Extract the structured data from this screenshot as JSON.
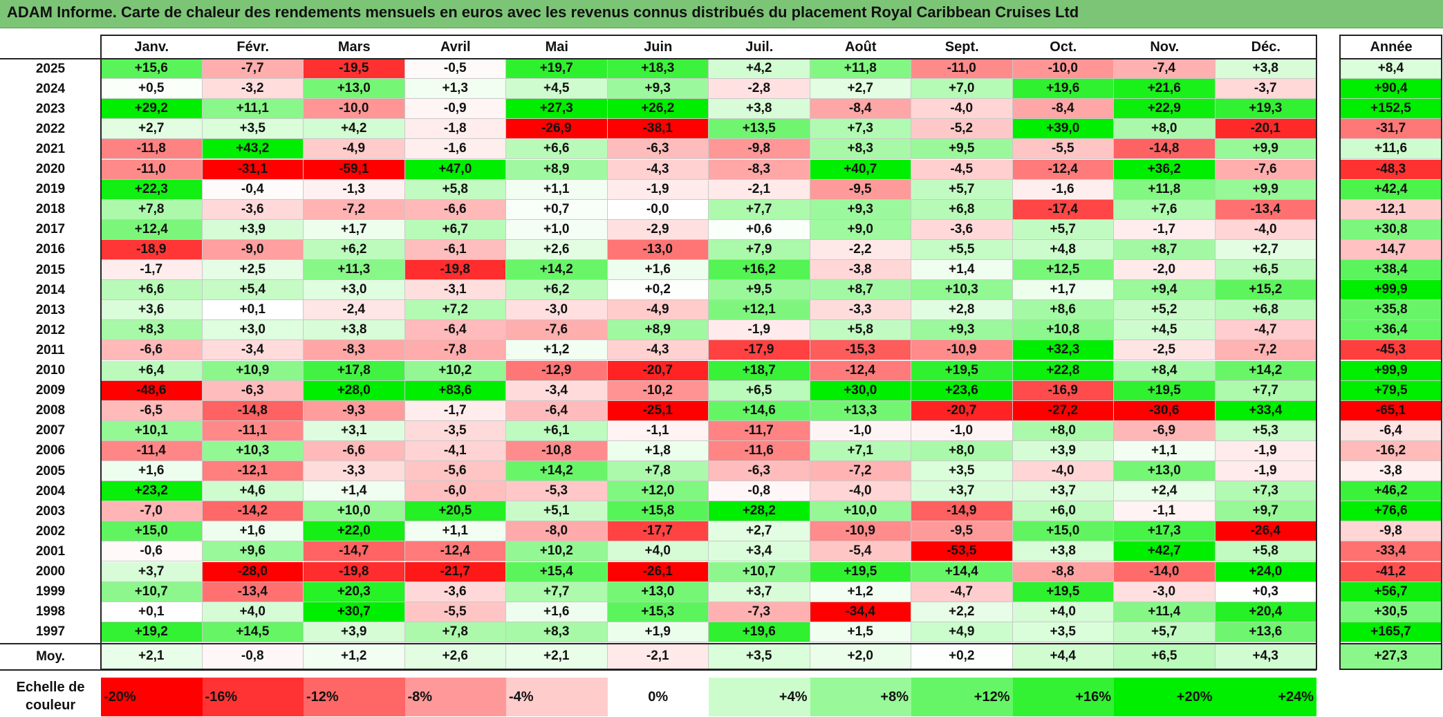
{
  "title": "ADAM Informe. Carte de chaleur des rendements mensuels en euros avec les revenus connus distribués du placement Royal Caribbean Cruises Ltd",
  "chart_data": {
    "type": "heatmap",
    "title": "ADAM Informe. Carte de chaleur des rendements mensuels en euros avec les revenus connus distribués du placement Royal Caribbean Cruises Ltd",
    "columns": [
      "Janv.",
      "Févr.",
      "Mars",
      "Avril",
      "Mai",
      "Juin",
      "Juil.",
      "Août",
      "Sept.",
      "Oct.",
      "Nov.",
      "Déc."
    ],
    "year_column_label": "Année",
    "rows": [
      {
        "year": "2025",
        "values": [
          "+15,6",
          "-7,7",
          "-19,5",
          "-0,5",
          "+19,7",
          "+18,3",
          "+4,2",
          "+11,8",
          "-11,0",
          "-10,0",
          "-7,4",
          "+3,8"
        ],
        "annual": "+8,4"
      },
      {
        "year": "2024",
        "values": [
          "+0,5",
          "-3,2",
          "+13,0",
          "+1,3",
          "+4,5",
          "+9,3",
          "-2,8",
          "+2,7",
          "+7,0",
          "+19,6",
          "+21,6",
          "-3,7"
        ],
        "annual": "+90,4"
      },
      {
        "year": "2023",
        "values": [
          "+29,2",
          "+11,1",
          "-10,0",
          "-0,9",
          "+27,3",
          "+26,2",
          "+3,8",
          "-8,4",
          "-4,0",
          "-8,4",
          "+22,9",
          "+19,3"
        ],
        "annual": "+152,5"
      },
      {
        "year": "2022",
        "values": [
          "+2,7",
          "+3,5",
          "+4,2",
          "-1,8",
          "-26,9",
          "-38,1",
          "+13,5",
          "+7,3",
          "-5,2",
          "+39,0",
          "+8,0",
          "-20,1"
        ],
        "annual": "-31,7"
      },
      {
        "year": "2021",
        "values": [
          "-11,8",
          "+43,2",
          "-4,9",
          "-1,6",
          "+6,6",
          "-6,3",
          "-9,8",
          "+8,3",
          "+9,5",
          "-5,5",
          "-14,8",
          "+9,9"
        ],
        "annual": "+11,6"
      },
      {
        "year": "2020",
        "values": [
          "-11,0",
          "-31,1",
          "-59,1",
          "+47,0",
          "+8,9",
          "-4,3",
          "-8,3",
          "+40,7",
          "-4,5",
          "-12,4",
          "+36,2",
          "-7,6"
        ],
        "annual": "-48,3"
      },
      {
        "year": "2019",
        "values": [
          "+22,3",
          "-0,4",
          "-1,3",
          "+5,8",
          "+1,1",
          "-1,9",
          "-2,1",
          "-9,5",
          "+5,7",
          "-1,6",
          "+11,8",
          "+9,9"
        ],
        "annual": "+42,4"
      },
      {
        "year": "2018",
        "values": [
          "+7,8",
          "-3,6",
          "-7,2",
          "-6,6",
          "+0,7",
          "-0,0",
          "+7,7",
          "+9,3",
          "+6,8",
          "-17,4",
          "+7,6",
          "-13,4"
        ],
        "annual": "-12,1"
      },
      {
        "year": "2017",
        "values": [
          "+12,4",
          "+3,9",
          "+1,7",
          "+6,7",
          "+1,0",
          "-2,9",
          "+0,6",
          "+9,0",
          "-3,6",
          "+5,7",
          "-1,7",
          "-4,0"
        ],
        "annual": "+30,8"
      },
      {
        "year": "2016",
        "values": [
          "-18,9",
          "-9,0",
          "+6,2",
          "-6,1",
          "+2,6",
          "-13,0",
          "+7,9",
          "-2,2",
          "+5,5",
          "+4,8",
          "+8,7",
          "+2,7"
        ],
        "annual": "-14,7"
      },
      {
        "year": "2015",
        "values": [
          "-1,7",
          "+2,5",
          "+11,3",
          "-19,8",
          "+14,2",
          "+1,6",
          "+16,2",
          "-3,8",
          "+1,4",
          "+12,5",
          "-2,0",
          "+6,5"
        ],
        "annual": "+38,4"
      },
      {
        "year": "2014",
        "values": [
          "+6,6",
          "+5,4",
          "+3,0",
          "-3,1",
          "+6,2",
          "+0,2",
          "+9,5",
          "+8,7",
          "+10,3",
          "+1,7",
          "+9,4",
          "+15,2"
        ],
        "annual": "+99,9"
      },
      {
        "year": "2013",
        "values": [
          "+3,6",
          "+0,1",
          "-2,4",
          "+7,2",
          "-3,0",
          "-4,9",
          "+12,1",
          "-3,3",
          "+2,8",
          "+8,6",
          "+5,2",
          "+6,8"
        ],
        "annual": "+35,8"
      },
      {
        "year": "2012",
        "values": [
          "+8,3",
          "+3,0",
          "+3,8",
          "-6,4",
          "-7,6",
          "+8,9",
          "-1,9",
          "+5,8",
          "+9,3",
          "+10,8",
          "+4,5",
          "-4,7"
        ],
        "annual": "+36,4"
      },
      {
        "year": "2011",
        "values": [
          "-6,6",
          "-3,4",
          "-8,3",
          "-7,8",
          "+1,2",
          "-4,3",
          "-17,9",
          "-15,3",
          "-10,9",
          "+32,3",
          "-2,5",
          "-7,2"
        ],
        "annual": "-45,3"
      },
      {
        "year": "2010",
        "values": [
          "+6,4",
          "+10,9",
          "+17,8",
          "+10,2",
          "-12,9",
          "-20,7",
          "+18,7",
          "-12,4",
          "+19,5",
          "+22,8",
          "+8,4",
          "+14,2"
        ],
        "annual": "+99,9"
      },
      {
        "year": "2009",
        "values": [
          "-48,6",
          "-6,3",
          "+28,0",
          "+83,6",
          "-3,4",
          "-10,2",
          "+6,5",
          "+30,0",
          "+23,6",
          "-16,9",
          "+19,5",
          "+7,7"
        ],
        "annual": "+79,5"
      },
      {
        "year": "2008",
        "values": [
          "-6,5",
          "-14,8",
          "-9,3",
          "-1,7",
          "-6,4",
          "-25,1",
          "+14,6",
          "+13,3",
          "-20,7",
          "-27,2",
          "-30,6",
          "+33,4"
        ],
        "annual": "-65,1"
      },
      {
        "year": "2007",
        "values": [
          "+10,1",
          "-11,1",
          "+3,1",
          "-3,5",
          "+6,1",
          "-1,1",
          "-11,7",
          "-1,0",
          "-1,0",
          "+8,0",
          "-6,9",
          "+5,3"
        ],
        "annual": "-6,4"
      },
      {
        "year": "2006",
        "values": [
          "-11,4",
          "+10,3",
          "-6,6",
          "-4,1",
          "-10,8",
          "+1,8",
          "-11,6",
          "+7,1",
          "+8,0",
          "+3,9",
          "+1,1",
          "-1,9"
        ],
        "annual": "-16,2"
      },
      {
        "year": "2005",
        "values": [
          "+1,6",
          "-12,1",
          "-3,3",
          "-5,6",
          "+14,2",
          "+7,8",
          "-6,3",
          "-7,2",
          "+3,5",
          "-4,0",
          "+13,0",
          "-1,9"
        ],
        "annual": "-3,8"
      },
      {
        "year": "2004",
        "values": [
          "+23,2",
          "+4,6",
          "+1,4",
          "-6,0",
          "-5,3",
          "+12,0",
          "-0,8",
          "-4,0",
          "+3,7",
          "+3,7",
          "+2,4",
          "+7,3"
        ],
        "annual": "+46,2"
      },
      {
        "year": "2003",
        "values": [
          "-7,0",
          "-14,2",
          "+10,0",
          "+20,5",
          "+5,1",
          "+15,8",
          "+28,2",
          "+10,0",
          "-14,9",
          "+6,0",
          "-1,1",
          "+9,7"
        ],
        "annual": "+76,6"
      },
      {
        "year": "2002",
        "values": [
          "+15,0",
          "+1,6",
          "+22,0",
          "+1,1",
          "-8,0",
          "-17,7",
          "+2,7",
          "-10,9",
          "-9,5",
          "+15,0",
          "+17,3",
          "-26,4"
        ],
        "annual": "-9,8"
      },
      {
        "year": "2001",
        "values": [
          "-0,6",
          "+9,6",
          "-14,7",
          "-12,4",
          "+10,2",
          "+4,0",
          "+3,4",
          "-5,4",
          "-53,5",
          "+3,8",
          "+42,7",
          "+5,8"
        ],
        "annual": "-33,4"
      },
      {
        "year": "2000",
        "values": [
          "+3,7",
          "-28,0",
          "-19,8",
          "-21,7",
          "+15,4",
          "-26,1",
          "+10,7",
          "+19,5",
          "+14,4",
          "-8,8",
          "-14,0",
          "+24,0"
        ],
        "annual": "-41,2"
      },
      {
        "year": "1999",
        "values": [
          "+10,7",
          "-13,4",
          "+20,3",
          "-3,6",
          "+7,7",
          "+13,0",
          "+3,7",
          "+1,2",
          "-4,7",
          "+19,5",
          "-3,0",
          "+0,3"
        ],
        "annual": "+56,7"
      },
      {
        "year": "1998",
        "values": [
          "+0,1",
          "+4,0",
          "+30,7",
          "-5,5",
          "+1,6",
          "+15,3",
          "-7,3",
          "-34,4",
          "+2,2",
          "+4,0",
          "+11,4",
          "+20,4"
        ],
        "annual": "+30,5"
      },
      {
        "year": "1997",
        "values": [
          "+19,2",
          "+14,5",
          "+3,9",
          "+7,8",
          "+8,3",
          "+1,9",
          "+19,6",
          "+1,5",
          "+4,9",
          "+3,5",
          "+5,7",
          "+13,6"
        ],
        "annual": "+165,7"
      }
    ],
    "average_label": "Moy.",
    "average_values": [
      "+2,1",
      "-0,8",
      "+1,2",
      "+2,6",
      "+2,1",
      "-2,1",
      "+3,5",
      "+2,0",
      "+0,2",
      "+4,4",
      "+6,5",
      "+4,3"
    ],
    "average_annual": "+27,3",
    "scale_label_line1": "Echelle de",
    "scale_label_line2": "couleur",
    "scale": [
      "-20%",
      "-16%",
      "-12%",
      "-8%",
      "-4%",
      "0%",
      "+4%",
      "+8%",
      "+12%",
      "+16%",
      "+20%",
      "+24%"
    ],
    "colors": {
      "negative_max": "#ff0000",
      "positive_max": "#00ee00",
      "neutral": "#ffffff",
      "title_bar": "#7cc576"
    }
  }
}
